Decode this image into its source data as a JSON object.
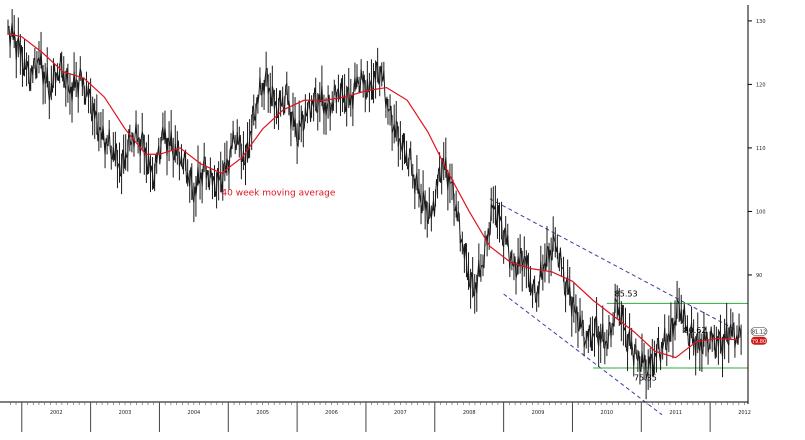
{
  "chart_data": {
    "type": "line",
    "title": "",
    "xlabel": "",
    "ylabel": "",
    "x_ticks": [
      "2002",
      "2003",
      "2004",
      "2005",
      "2006",
      "2007",
      "2008",
      "2009",
      "2010",
      "2011",
      "2012"
    ],
    "y_ticks": [
      90,
      100,
      110,
      120,
      130
    ],
    "xlim": [
      2001.8,
      2012.55
    ],
    "ylim": [
      70,
      132.5
    ],
    "grid": false,
    "legend": "none",
    "colors": {
      "price": "#1a1a1a",
      "moving_average": "#e0141e",
      "channel": "#3b3fa0",
      "levels": "#2faa3c",
      "last_price_badge": "#d01a1a"
    },
    "series": [
      {
        "name": "40 week moving average",
        "x": [
          2001.8,
          2002.0,
          2002.3,
          2002.6,
          2002.9,
          2003.2,
          2003.5,
          2003.8,
          2004.0,
          2004.3,
          2004.6,
          2004.9,
          2005.2,
          2005.5,
          2005.8,
          2006.1,
          2006.4,
          2006.7,
          2007.0,
          2007.3,
          2007.6,
          2007.9,
          2008.2,
          2008.5,
          2008.8,
          2009.1,
          2009.4,
          2009.7,
          2010.0,
          2010.3,
          2010.6,
          2010.9,
          2011.2,
          2011.5,
          2011.8,
          2012.1,
          2012.4
        ],
        "values": [
          128.0,
          127.5,
          125.0,
          122.0,
          121.0,
          118.0,
          113.0,
          109.0,
          109.0,
          110.0,
          107.5,
          106.0,
          108.5,
          113.0,
          116.0,
          117.5,
          117.5,
          118.0,
          119.0,
          119.5,
          117.5,
          112.5,
          106.0,
          100.0,
          94.5,
          92.0,
          91.0,
          90.5,
          89.0,
          86.0,
          83.5,
          81.0,
          78.0,
          77.0,
          79.5,
          80.0,
          79.8
        ]
      },
      {
        "name": "",
        "x": [
          2001.8,
          2001.95,
          2002.1,
          2002.25,
          2002.4,
          2002.55,
          2002.7,
          2002.85,
          2003.0,
          2003.15,
          2003.3,
          2003.45,
          2003.6,
          2003.75,
          2003.9,
          2004.05,
          2004.2,
          2004.35,
          2004.5,
          2004.65,
          2004.8,
          2004.95,
          2005.1,
          2005.25,
          2005.4,
          2005.55,
          2005.7,
          2005.85,
          2006.0,
          2006.15,
          2006.3,
          2006.45,
          2006.6,
          2006.75,
          2006.9,
          2007.05,
          2007.2,
          2007.35,
          2007.5,
          2007.65,
          2007.8,
          2007.95,
          2008.1,
          2008.25,
          2008.4,
          2008.55,
          2008.7,
          2008.85,
          2009.0,
          2009.15,
          2009.3,
          2009.45,
          2009.6,
          2009.75,
          2009.9,
          2010.05,
          2010.2,
          2010.35,
          2010.5,
          2010.65,
          2010.8,
          2010.95,
          2011.1,
          2011.25,
          2011.4,
          2011.55,
          2011.7,
          2011.85,
          2012.0,
          2012.15,
          2012.3,
          2012.45
        ],
        "values": [
          129.0,
          126.0,
          121.0,
          124.0,
          119.0,
          123.0,
          119.0,
          121.0,
          117.0,
          112.0,
          110.0,
          107.0,
          112.0,
          111.0,
          105.0,
          112.0,
          110.0,
          108.0,
          103.0,
          107.0,
          104.0,
          106.0,
          112.0,
          108.0,
          117.0,
          121.0,
          116.0,
          118.0,
          112.0,
          116.0,
          118.0,
          116.0,
          119.0,
          117.0,
          121.0,
          119.0,
          123.0,
          115.0,
          111.0,
          107.0,
          102.0,
          99.0,
          108.0,
          104.0,
          95.0,
          87.0,
          92.0,
          101.0,
          97.0,
          91.0,
          93.0,
          86.0,
          92.0,
          95.0,
          89.0,
          84.0,
          80.0,
          81.0,
          79.0,
          85.5,
          80.0,
          77.0,
          75.35,
          78.0,
          80.0,
          85.0,
          80.62,
          79.0,
          80.0,
          79.0,
          81.12,
          79.8
        ]
      }
    ],
    "channel_lines": [
      {
        "name": "upper",
        "x": [
          2008.8,
          2012.35
        ],
        "values": [
          102.0,
          81.5
        ]
      },
      {
        "name": "lower",
        "x": [
          2009.0,
          2011.3
        ],
        "values": [
          87.0,
          68.0
        ]
      }
    ],
    "horizontal_levels": [
      {
        "value": 85.53,
        "x": [
          2010.5,
          2012.55
        ]
      },
      {
        "value": 75.35,
        "x": [
          2010.3,
          2012.55
        ]
      }
    ],
    "annotations": [
      {
        "text": "40 week moving average",
        "x": 2004.9,
        "y": 102.5
      },
      {
        "text": "85.53",
        "x": 2010.78,
        "y": 86.6
      },
      {
        "text": "80.62",
        "x": 2011.78,
        "y": 80.9
      },
      {
        "text": "75.35",
        "x": 2011.06,
        "y": 73.4
      }
    ],
    "last_values": [
      "81.12",
      "79.80"
    ]
  }
}
